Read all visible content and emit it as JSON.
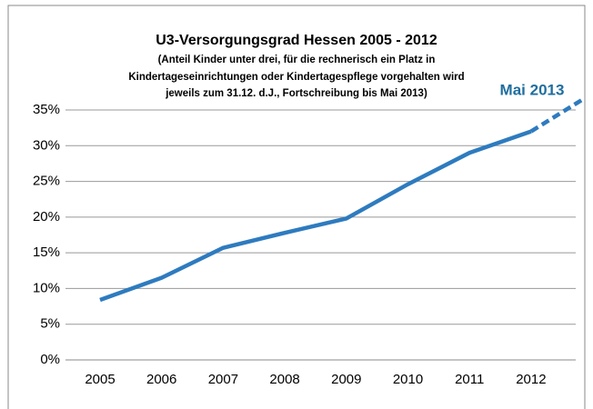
{
  "chart_data": {
    "type": "line",
    "title": "U3-Versorgungsgrad Hessen 2005 - 2012",
    "subtitle": [
      "(Anteil Kinder unter drei, für die rechnerisch ein Platz in",
      "Kindertageseinrichtungen oder Kindertagespflege vorgehalten wird",
      "jeweils zum 31.12. d.J., Fortschreibung bis Mai 2013)"
    ],
    "categories": [
      "2005",
      "2006",
      "2007",
      "2008",
      "2009",
      "2010",
      "2011",
      "2012"
    ],
    "values": [
      8.4,
      11.5,
      15.7,
      17.8,
      19.8,
      24.6,
      29.0,
      32.0
    ],
    "color": "#2E7BBF",
    "projection": {
      "label": "Mai 2013",
      "value": 36.5,
      "color": "#1F6E9E"
    },
    "ylim": [
      0,
      35
    ],
    "yticks": [
      {
        "value": 0,
        "label": "0%"
      },
      {
        "value": 5,
        "label": "5%"
      },
      {
        "value": 10,
        "label": "10%"
      },
      {
        "value": 15,
        "label": "15%"
      },
      {
        "value": 20,
        "label": "20%"
      },
      {
        "value": 25,
        "label": "25%"
      },
      {
        "value": 30,
        "label": "30%"
      },
      {
        "value": 35,
        "label": "35%"
      }
    ],
    "grid": true
  }
}
